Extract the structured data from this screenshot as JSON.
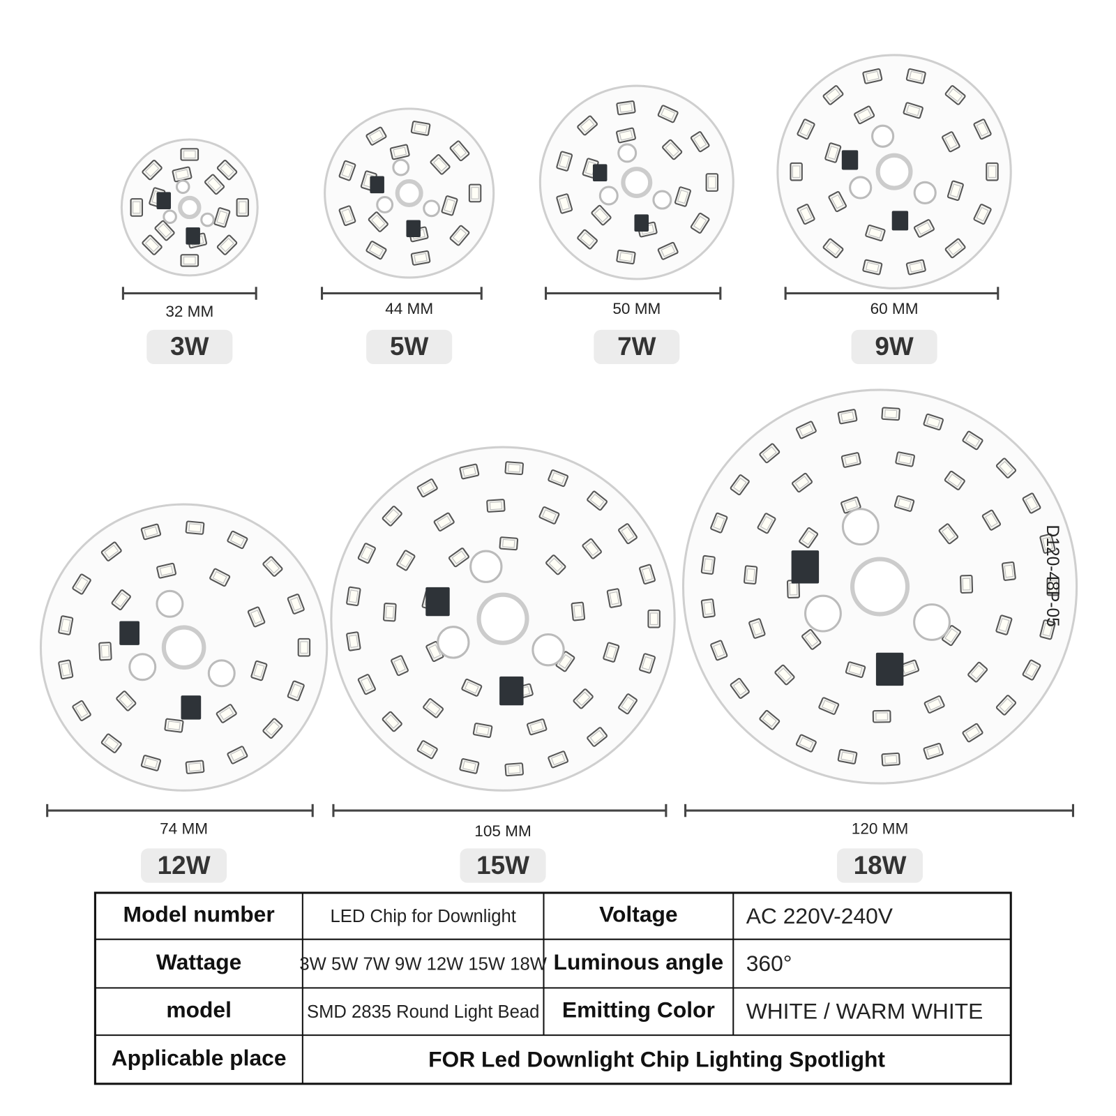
{
  "boards": [
    {
      "size": "32 MM",
      "wattage": "3W"
    },
    {
      "size": "44 MM",
      "wattage": "5W"
    },
    {
      "size": "50 MM",
      "wattage": "7W"
    },
    {
      "size": "60 MM",
      "wattage": "9W"
    },
    {
      "size": "74 MM",
      "wattage": "12W"
    },
    {
      "size": "105 MM",
      "wattage": "15W"
    },
    {
      "size": "120 MM",
      "wattage": "18W"
    }
  ],
  "board_marking": "D120-48P-05",
  "table": {
    "rows": [
      [
        "Model number",
        "LED Chip for Downlight",
        "Voltage",
        "AC 220V-240V"
      ],
      [
        "Wattage",
        "3W 5W 7W 9W 12W 15W 18W",
        "Luminous angle",
        "360°"
      ],
      [
        "model",
        "SMD 2835 Round Light Bead",
        "Emitting Color",
        "WHITE  /  WARM WHITE"
      ],
      [
        "Applicable place",
        "FOR Led Downlight Chip Lighting Spotlight"
      ]
    ]
  }
}
